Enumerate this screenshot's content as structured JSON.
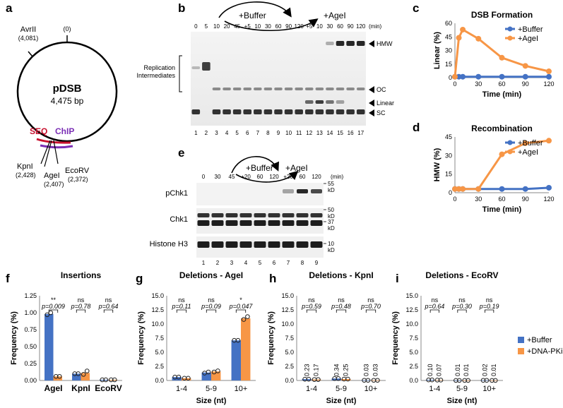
{
  "panels": {
    "a": {
      "label": "a",
      "plasmid_name": "pDSB",
      "plasmid_size": "4,475 bp",
      "origin": "(0)",
      "sites": [
        {
          "name": "AvrII",
          "pos": "(4,081)"
        },
        {
          "name": "KpnI",
          "pos": "(2,428)"
        },
        {
          "name": "AgeI",
          "pos": "(2,407)"
        },
        {
          "name": "EcoRV",
          "pos": "(2,372)"
        }
      ],
      "seq_label": "SEQ",
      "chip_label": "ChIP",
      "colors": {
        "seq": "#c8102e",
        "chip": "#7b2fb5"
      }
    },
    "b": {
      "label": "b",
      "buffer_label": "+Buffer",
      "agei_label": "+AgeI",
      "min_label": "(min)",
      "time_labels": [
        "0",
        "5",
        "10",
        "20",
        "45",
        "+5",
        "10",
        "30",
        "60",
        "90",
        "120",
        "+5",
        "10",
        "30",
        "60",
        "90",
        "120"
      ],
      "lane_numbers": [
        "1",
        "2",
        "3",
        "4",
        "5",
        "6",
        "7",
        "8",
        "9",
        "10",
        "11",
        "12",
        "13",
        "14",
        "15",
        "16",
        "17"
      ],
      "left_label_1": "Replication",
      "left_label_2": "Intermediates",
      "band_labels": [
        "HMW",
        "OC",
        "Linear",
        "SC"
      ]
    },
    "c": {
      "label": "c",
      "chart_data": {
        "type": "line",
        "title": "DSB Formation",
        "xlabel": "Time (min)",
        "ylabel": "Linear (%)",
        "xlim": [
          0,
          120
        ],
        "ylim": [
          0,
          60
        ],
        "yticks": [
          0,
          15,
          30,
          45,
          60
        ],
        "xticks": [
          0,
          30,
          60,
          90,
          120
        ],
        "series": [
          {
            "name": "+Buffer",
            "color": "#4472c4",
            "x": [
              0,
              5,
              10,
              30,
              60,
              90,
              120
            ],
            "y": [
              1,
              1,
              1,
              1,
              1,
              1,
              1
            ]
          },
          {
            "name": "+AgeI",
            "color": "#f79646",
            "x": [
              0,
              5,
              10,
              30,
              60,
              90,
              120
            ],
            "y": [
              1,
              44,
              53,
              43,
              22,
              13,
              7
            ]
          }
        ]
      }
    },
    "d": {
      "label": "d",
      "chart_data": {
        "type": "line",
        "title": "Recombination",
        "xlabel": "Time (min)",
        "ylabel": "HMW (%)",
        "xlim": [
          0,
          120
        ],
        "ylim": [
          0,
          45
        ],
        "yticks": [
          0,
          15,
          30,
          45
        ],
        "xticks": [
          0,
          30,
          60,
          90,
          120
        ],
        "series": [
          {
            "name": "+Buffer",
            "color": "#4472c4",
            "x": [
              0,
              5,
              10,
              30,
              60,
              90,
              120
            ],
            "y": [
              3,
              3,
              3,
              3,
              3,
              3,
              4
            ]
          },
          {
            "name": "+AgeI",
            "color": "#f79646",
            "x": [
              0,
              5,
              10,
              30,
              60,
              90,
              120
            ],
            "y": [
              3,
              3,
              3,
              3,
              31,
              40,
              42
            ]
          }
        ]
      }
    },
    "e": {
      "label": "e",
      "buffer_label": "+Buffer",
      "agei_label": "+AgeI",
      "min_label": "(min)",
      "time_labels": [
        "0",
        "30",
        "45",
        "+20",
        "60",
        "120",
        "+20",
        "60",
        "120"
      ],
      "lane_numbers": [
        "1",
        "2",
        "3",
        "4",
        "5",
        "6",
        "7",
        "8",
        "9"
      ],
      "row_labels": [
        "pChk1",
        "Chk1",
        "Histone H3"
      ],
      "markers": [
        "55",
        "kD",
        "50",
        "kD",
        "37",
        "kD",
        "10",
        "kD"
      ]
    },
    "f": {
      "label": "f",
      "chart_data": {
        "type": "bar",
        "title": "Insertions",
        "ylabel": "Frequency (%)",
        "categories": [
          "AgeI",
          "KpnI",
          "EcoRV"
        ],
        "ylim": [
          0,
          1.25
        ],
        "yticks": [
          "0.00",
          "0.25",
          "0.50",
          "0.75",
          "1.00",
          "1.25"
        ],
        "series": [
          {
            "name": "+Buffer",
            "values": [
              0.98,
              0.1,
              0.01
            ],
            "points": [
              [
                0.97,
                1.0
              ],
              [
                0.1,
                0.1
              ],
              [
                0.01,
                0.01
              ]
            ]
          },
          {
            "name": "+DNA-PKi",
            "values": [
              0.06,
              0.11,
              0.01
            ],
            "points": [
              [
                0.06,
                0.06
              ],
              [
                0.09,
                0.14
              ],
              [
                0.01,
                0.01
              ]
            ]
          }
        ],
        "significance": [
          "**",
          "ns",
          "ns"
        ],
        "pvalues": [
          "p=0.009",
          "p=0.78",
          "p=0.64"
        ]
      }
    },
    "g": {
      "label": "g",
      "chart_data": {
        "type": "bar",
        "title": "Deletions - AgeI",
        "xlabel": "Size (nt)",
        "ylabel": "Frequency (%)",
        "categories": [
          "1-4",
          "5-9",
          "10+"
        ],
        "ylim": [
          0,
          15
        ],
        "yticks": [
          "0.0",
          "2.5",
          "5.0",
          "7.5",
          "10.0",
          "12.5",
          "15.0"
        ],
        "series": [
          {
            "name": "+Buffer",
            "values": [
              0.6,
              1.4,
              7.1
            ],
            "points": [
              [
                0.6,
                0.6
              ],
              [
                1.3,
                1.5
              ],
              [
                7.1,
                7.1
              ]
            ]
          },
          {
            "name": "+DNA-PKi",
            "values": [
              0.4,
              1.6,
              11.0
            ],
            "points": [
              [
                0.4,
                0.4
              ],
              [
                1.5,
                1.7
              ],
              [
                10.8,
                11.3
              ]
            ]
          }
        ],
        "significance": [
          "ns",
          "ns",
          "*"
        ],
        "pvalues": [
          "p=0.11",
          "p=0.09",
          "p=0.047"
        ]
      }
    },
    "h": {
      "label": "h",
      "chart_data": {
        "type": "bar",
        "title": "Deletions - KpnI",
        "xlabel": "Size (nt)",
        "ylabel": "Frequency (%)",
        "categories": [
          "1-4",
          "5-9",
          "10+"
        ],
        "ylim": [
          0,
          15
        ],
        "yticks": [
          "0.0",
          "2.5",
          "5.0",
          "7.5",
          "10.0",
          "12.5",
          "15.0"
        ],
        "series": [
          {
            "name": "+Buffer",
            "values": [
              0.23,
              0.34,
              0.03
            ],
            "points": [
              [
                0.23,
                0.23
              ],
              [
                0.34,
                0.34
              ],
              [
                0.03,
                0.03
              ]
            ]
          },
          {
            "name": "+DNA-PKi",
            "values": [
              0.17,
              0.25,
              0.03
            ],
            "points": [
              [
                0.17,
                0.17
              ],
              [
                0.25,
                0.25
              ],
              [
                0.03,
                0.03
              ]
            ]
          }
        ],
        "data_labels": [
          [
            "0.23",
            "0.17"
          ],
          [
            "0.34",
            "0.25"
          ],
          [
            "0.03",
            "0.03"
          ]
        ],
        "significance": [
          "ns",
          "ns",
          "ns"
        ],
        "pvalues": [
          "p=0.59",
          "p=0.48",
          "p=0.70"
        ]
      }
    },
    "i": {
      "label": "i",
      "chart_data": {
        "type": "bar",
        "title": "Deletions - EcoRV",
        "xlabel": "Size (nt)",
        "ylabel": "Frequency (%)",
        "categories": [
          "1-4",
          "5-9",
          "10+"
        ],
        "ylim": [
          0,
          15
        ],
        "yticks": [
          "0.0",
          "2.5",
          "5.0",
          "7.5",
          "10.0",
          "12.5",
          "15.0"
        ],
        "series": [
          {
            "name": "+Buffer",
            "values": [
              0.1,
              0.01,
              0.02
            ],
            "points": [
              [
                0.1,
                0.1
              ],
              [
                0.01,
                0.01
              ],
              [
                0.02,
                0.02
              ]
            ]
          },
          {
            "name": "+DNA-PKi",
            "values": [
              0.07,
              0.01,
              0.01
            ],
            "points": [
              [
                0.07,
                0.07
              ],
              [
                0.01,
                0.01
              ],
              [
                0.01,
                0.01
              ]
            ]
          }
        ],
        "data_labels": [
          [
            "0.10",
            "0.07"
          ],
          [
            "0.01",
            "0.01"
          ],
          [
            "0.02",
            "0.01"
          ]
        ],
        "significance": [
          "ns",
          "ns",
          "ns"
        ],
        "pvalues": [
          "p=0.64",
          "p=0.30",
          "p=0.19"
        ]
      }
    }
  },
  "legend": {
    "items": [
      {
        "name": "+Buffer",
        "color": "#4472c4"
      },
      {
        "name": "+DNA-PKi",
        "color": "#f79646"
      }
    ]
  },
  "colors": {
    "blue": "#4472c4",
    "orange": "#f79646",
    "blue_dark": "#2f528f",
    "orange_dark": "#c55a11"
  }
}
